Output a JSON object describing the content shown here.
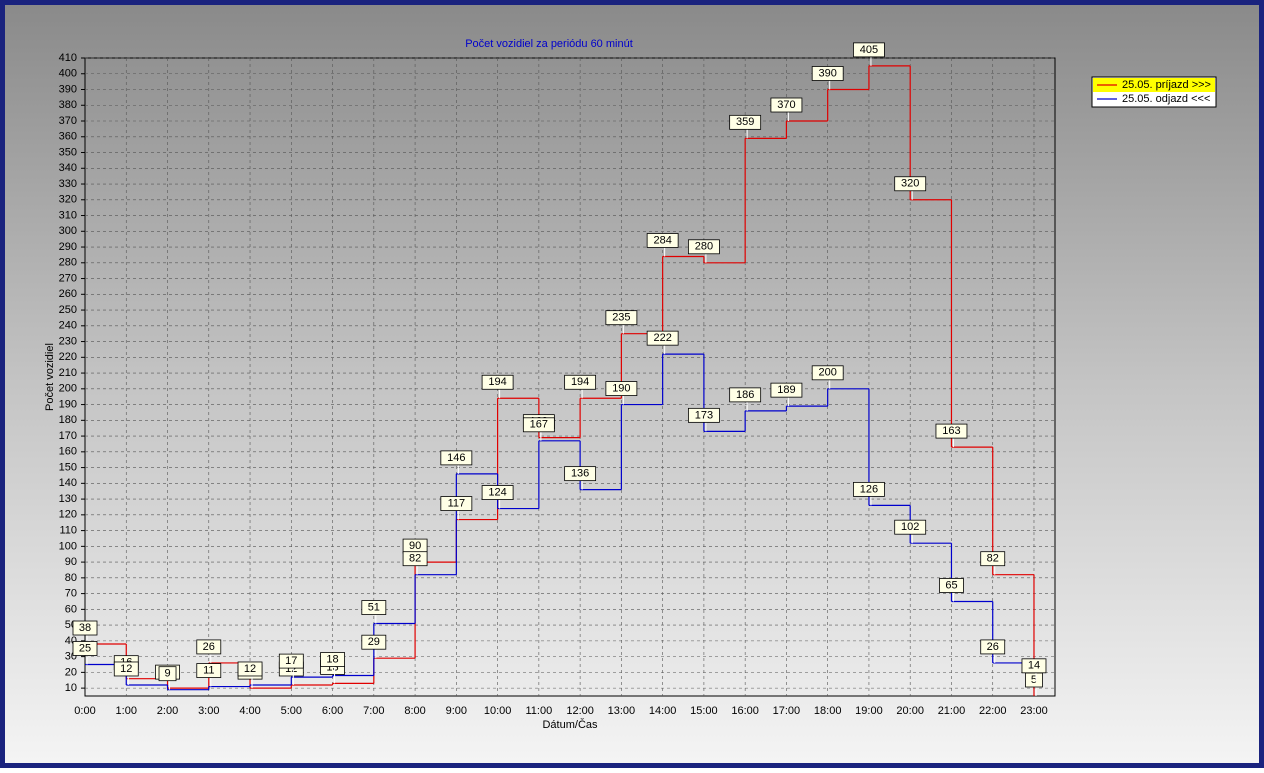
{
  "chart_data": {
    "type": "step",
    "title": "Počet vozidiel za periódu 60 minút",
    "x_label": "Dátum/Čas",
    "y_label": "Počet vozidiel",
    "categories": [
      "0:00",
      "1:00",
      "2:00",
      "3:00",
      "4:00",
      "5:00",
      "6:00",
      "7:00",
      "8:00",
      "9:00",
      "10:00",
      "11:00",
      "12:00",
      "13:00",
      "14:00",
      "15:00",
      "16:00",
      "17:00",
      "18:00",
      "19:00",
      "20:00",
      "21:00",
      "22:00",
      "23:00"
    ],
    "series": [
      {
        "name": "25.05.  príjazd >>>",
        "color": "#e00000",
        "values": [
          38,
          16,
          10,
          26,
          10,
          12,
          13,
          29,
          90,
          117,
          194,
          169,
          194,
          235,
          284,
          280,
          359,
          370,
          390,
          405,
          320,
          163,
          82,
          5
        ]
      },
      {
        "name": "25.05.  odjazd <<<",
        "color": "#0000cc",
        "values": [
          25,
          12,
          9,
          11,
          12,
          17,
          18,
          51,
          82,
          146,
          124,
          167,
          136,
          190,
          222,
          173,
          186,
          189,
          200,
          126,
          102,
          65,
          26,
          14
        ]
      }
    ],
    "ylim": [
      5,
      410
    ],
    "yticks": [
      10,
      20,
      30,
      40,
      50,
      60,
      70,
      80,
      90,
      100,
      110,
      120,
      130,
      140,
      150,
      160,
      170,
      180,
      190,
      200,
      210,
      220,
      230,
      240,
      250,
      260,
      270,
      280,
      290,
      300,
      310,
      320,
      330,
      340,
      350,
      360,
      370,
      380,
      390,
      400,
      410
    ],
    "grid": true,
    "legend": "top-right"
  }
}
